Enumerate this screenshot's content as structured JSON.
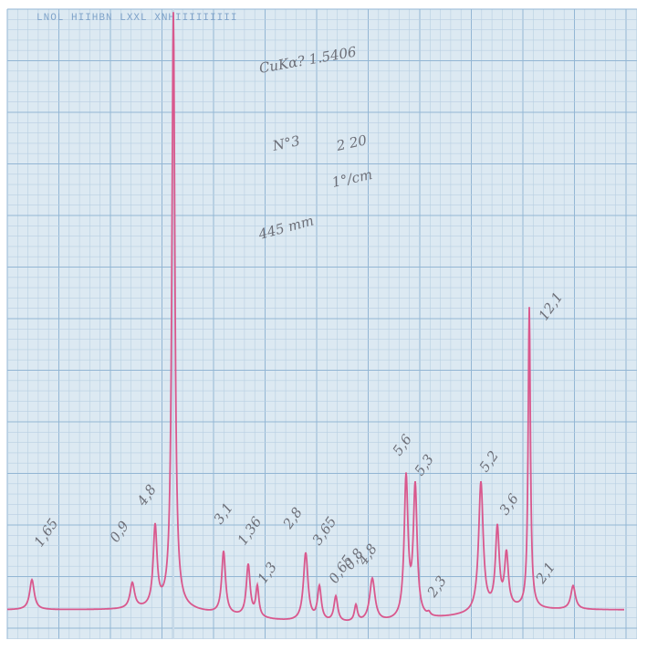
{
  "header": {
    "printed": "LNOL HIIHBN  LXXL XNHIIIIIIIII"
  },
  "notes": {
    "title": "CuKα?  1.5406",
    "sample": "N°3",
    "speed": "2 20",
    "scale": "1°/cm",
    "extra": "445 mm"
  },
  "peak_labels": [
    "1,65",
    "0,9",
    "4,8",
    "3,1",
    "1,36",
    "2,8",
    "1,3",
    "3,65",
    "0,65",
    "0,8",
    "4,8",
    "5,6",
    "5,3",
    "2,3",
    "5,2",
    "3,6",
    "12,1",
    "2,1"
  ]
}
